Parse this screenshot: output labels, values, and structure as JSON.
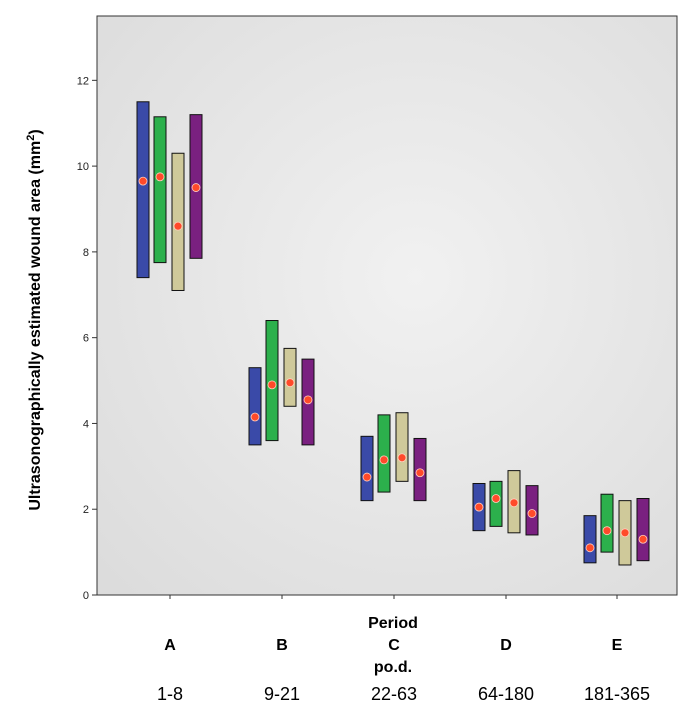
{
  "chart_data": {
    "type": "range-bar",
    "ylabel": "Ultrasonographically estimated wound area (mm",
    "ylabel_sup": "2",
    "ylabel_end": ")",
    "xlabel_top": "Period",
    "xlabel_mid": "po.d.",
    "ylim": [
      0,
      13.5
    ],
    "yticks": [
      0,
      2,
      4,
      6,
      8,
      10,
      12
    ],
    "ytick_labels": [
      "0",
      "2",
      "4",
      "6",
      "8",
      "10",
      "12"
    ],
    "categories": [
      "A",
      "B",
      "C",
      "D",
      "E"
    ],
    "ranges": [
      "1-8",
      "9-21",
      "22-63",
      "64-180",
      "181-365"
    ],
    "series": [
      {
        "color": "#3a4aa8",
        "low": [
          7.4,
          3.5,
          2.2,
          1.5,
          0.75
        ],
        "high": [
          11.5,
          5.3,
          3.7,
          2.6,
          1.85
        ],
        "mean": [
          9.65,
          4.15,
          2.75,
          2.05,
          1.1
        ]
      },
      {
        "color": "#2cb04c",
        "low": [
          7.75,
          3.6,
          2.4,
          1.6,
          1.0
        ],
        "high": [
          11.15,
          6.4,
          4.2,
          2.65,
          2.35
        ],
        "mean": [
          9.75,
          4.9,
          3.15,
          2.25,
          1.5
        ]
      },
      {
        "color": "#cfc99a",
        "low": [
          7.1,
          4.4,
          2.65,
          1.45,
          0.7
        ],
        "high": [
          10.3,
          5.75,
          4.25,
          2.9,
          2.2
        ],
        "mean": [
          8.6,
          4.95,
          3.2,
          2.15,
          1.45
        ]
      },
      {
        "color": "#7a2080",
        "low": [
          7.85,
          3.5,
          2.2,
          1.4,
          0.8
        ],
        "high": [
          11.2,
          5.5,
          3.65,
          2.55,
          2.25
        ],
        "mean": [
          9.5,
          4.55,
          2.85,
          1.9,
          1.3
        ]
      }
    ],
    "mean_marker_color": "#ff4a2a",
    "plot_background": "#ebebeb",
    "grid": false
  }
}
